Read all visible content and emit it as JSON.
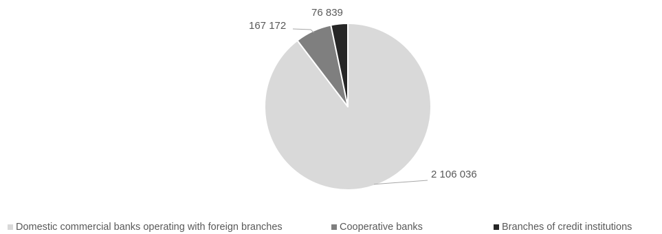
{
  "chart_data": {
    "type": "pie",
    "categories": [
      "Domestic commercial banks operating with foreign branches",
      "Cooperative banks",
      "Branches of credit institutions"
    ],
    "values": [
      2106036,
      167172,
      76839
    ],
    "data_labels": [
      "2 106 036",
      "167 172",
      "76 839"
    ],
    "colors": [
      "#d9d9d9",
      "#7f7f7f",
      "#262626"
    ],
    "legend": {
      "position": "bottom",
      "entries": [
        {
          "label": "Domestic commercial banks operating with foreign branches",
          "color": "#d9d9d9"
        },
        {
          "label": "Cooperative banks",
          "color": "#7f7f7f"
        },
        {
          "label": "Branches of credit institutions",
          "color": "#262626"
        }
      ]
    },
    "start_angle": "12 o'clock",
    "direction": "clockwise"
  }
}
